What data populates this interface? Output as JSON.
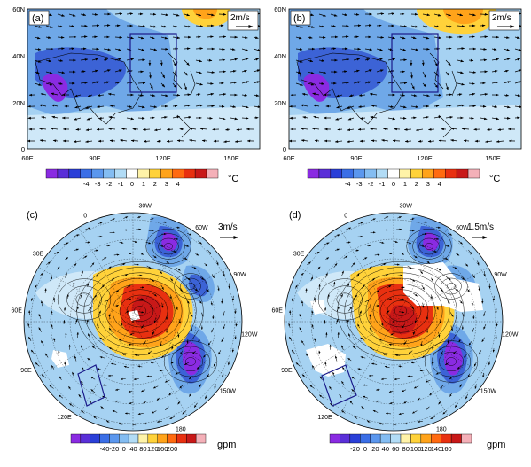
{
  "panels": [
    {
      "label": "(a)",
      "ref_vector": "2m/s"
    },
    {
      "label": "(b)",
      "ref_vector": "2m/s"
    },
    {
      "label": "(c)",
      "ref_vector": "3m/s"
    },
    {
      "label": "(d)",
      "ref_vector": "1.5m/s"
    }
  ],
  "top_axes": {
    "lat_labels": [
      "60N",
      "40N",
      "20N",
      "0"
    ],
    "lon_labels": [
      "60E",
      "90E",
      "120E",
      "150E"
    ]
  },
  "polar_labels": [
    "0",
    "30W",
    "60W",
    "90W",
    "120W",
    "150W",
    "180",
    "150E",
    "120E",
    "90E",
    "60E",
    "30E"
  ],
  "colorbar_temp": {
    "unit": "°C",
    "labels": [
      "-4",
      "-3",
      "-2",
      "-1",
      "0",
      "1",
      "2",
      "3",
      "4"
    ],
    "colors": [
      "#8a2be2",
      "#5a2fd8",
      "#2a3fd8",
      "#3a6ee6",
      "#5b97ee",
      "#84bdf2",
      "#b2dcf6",
      "#ffffff",
      "#fff3a8",
      "#ffd23a",
      "#ffa31a",
      "#ff6a10",
      "#e83010",
      "#c81818",
      "#f4b0b8"
    ]
  },
  "colorbar_c": {
    "unit": "gpm",
    "labels": [
      "-40",
      "-20",
      "0",
      "40",
      "80",
      "120",
      "160",
      "200"
    ],
    "colors": [
      "#8a2be2",
      "#5a2fd8",
      "#2a3fd8",
      "#3a6ee6",
      "#5b97ee",
      "#84bdf2",
      "#b2dcf6",
      "#fff3a8",
      "#ffd23a",
      "#ffa31a",
      "#ff6a10",
      "#e83010",
      "#c81818",
      "#f4b0b8"
    ]
  },
  "colorbar_d": {
    "unit": "gpm",
    "labels": [
      "-20",
      "0",
      "20",
      "40",
      "60",
      "80",
      "100",
      "120",
      "140",
      "160"
    ],
    "colors": [
      "#8a2be2",
      "#5a2fd8",
      "#2a3fd8",
      "#3a6ee6",
      "#5b97ee",
      "#84bdf2",
      "#b2dcf6",
      "#fff3a8",
      "#ffd23a",
      "#ffa31a",
      "#ff6a10",
      "#e83010",
      "#c81818",
      "#f4b0b8"
    ]
  },
  "map_colors": {
    "background_blue": "#a6d2f2",
    "light_blue": "#cfe8f8",
    "mid_blue": "#6fa8e8",
    "dark_blue": "#3c63d6",
    "purple": "#8a2be2",
    "yellow": "#ffd23a",
    "orange": "#ffa31a",
    "red": "#e83010",
    "box_color": "#1a1a8a"
  }
}
